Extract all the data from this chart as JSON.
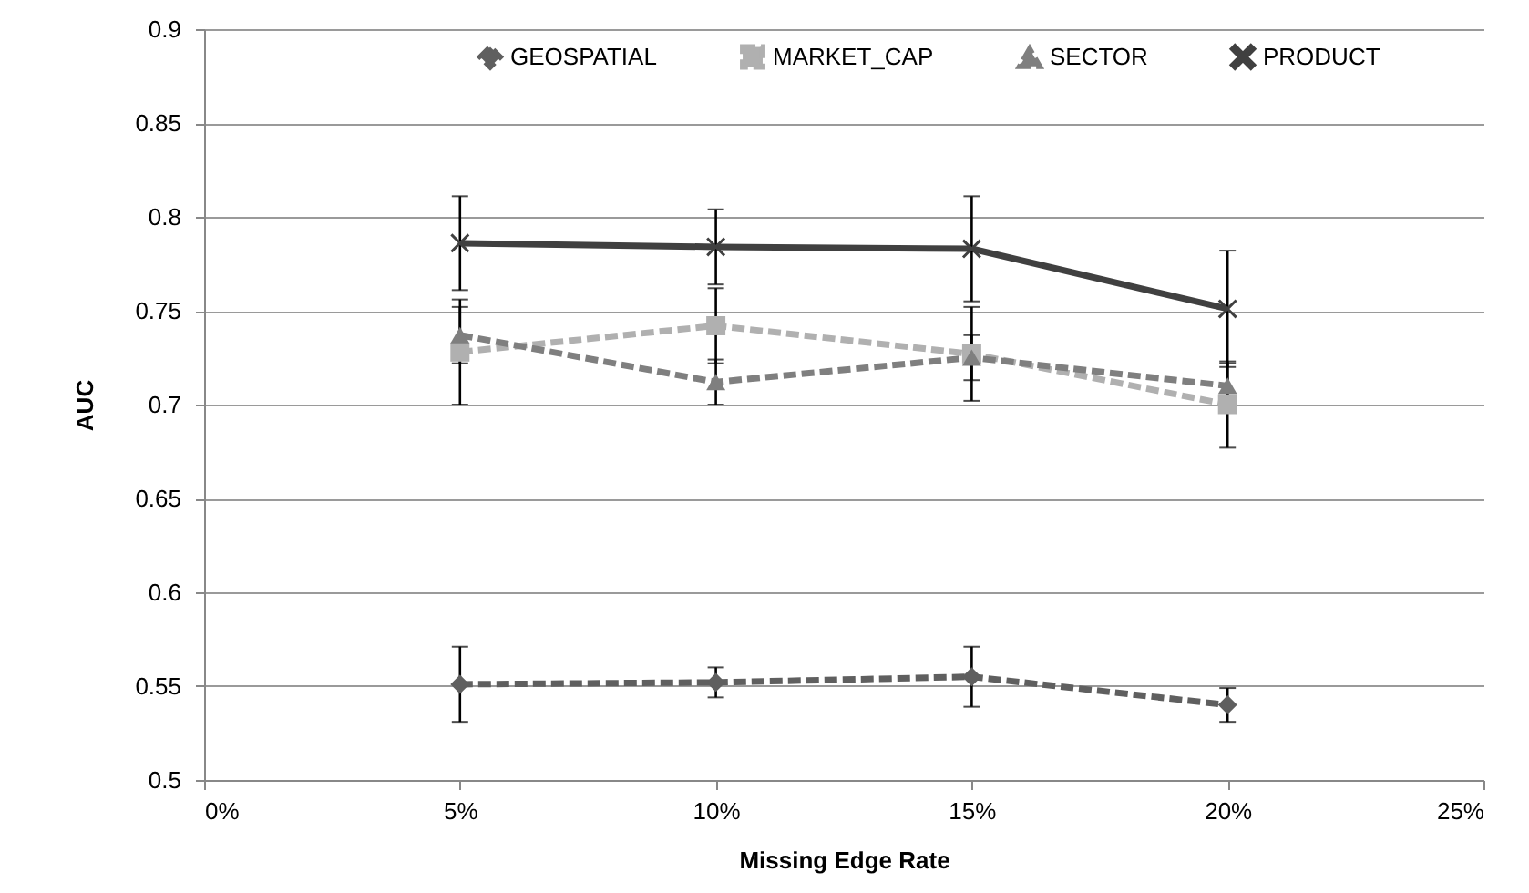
{
  "chart_data": {
    "type": "line",
    "xlabel": "Missing Edge Rate",
    "ylabel": "AUC",
    "x": [
      5,
      10,
      15,
      20
    ],
    "xlim": [
      0,
      25
    ],
    "xticks": [
      {
        "value": 0,
        "label": "0%"
      },
      {
        "value": 5,
        "label": "5%"
      },
      {
        "value": 10,
        "label": "10%"
      },
      {
        "value": 15,
        "label": "15%"
      },
      {
        "value": 20,
        "label": "20%"
      },
      {
        "value": 25,
        "label": "25%"
      }
    ],
    "ylim": [
      0.5,
      0.9
    ],
    "yticks": [
      0.5,
      0.55,
      0.6,
      0.65,
      0.7,
      0.75,
      0.8,
      0.85,
      0.9
    ],
    "grid": "y",
    "legend": "top",
    "series": [
      {
        "name": "GEOSPATIAL",
        "color": "#5f5f5f",
        "marker": "diamond",
        "line_style": "dashed",
        "values": [
          0.551,
          0.552,
          0.555,
          0.54
        ],
        "errors": [
          0.02,
          0.008,
          0.016,
          0.009
        ]
      },
      {
        "name": "MARKET_CAP",
        "color": "#b0b0b0",
        "marker": "square",
        "line_style": "dashed",
        "values": [
          0.728,
          0.742,
          0.727,
          0.7
        ],
        "errors": [
          0.028,
          0.02,
          0.025,
          0.023
        ]
      },
      {
        "name": "SECTOR",
        "color": "#7f7f7f",
        "marker": "triangle",
        "line_style": "dashed",
        "values": [
          0.737,
          0.712,
          0.725,
          0.71
        ],
        "errors": [
          0.015,
          0.012,
          0.012,
          0.012
        ]
      },
      {
        "name": "PRODUCT",
        "color": "#404040",
        "marker": "cross",
        "line_style": "solid",
        "values": [
          0.786,
          0.784,
          0.783,
          0.751
        ],
        "errors": [
          0.025,
          0.02,
          0.028,
          0.031
        ]
      }
    ]
  }
}
